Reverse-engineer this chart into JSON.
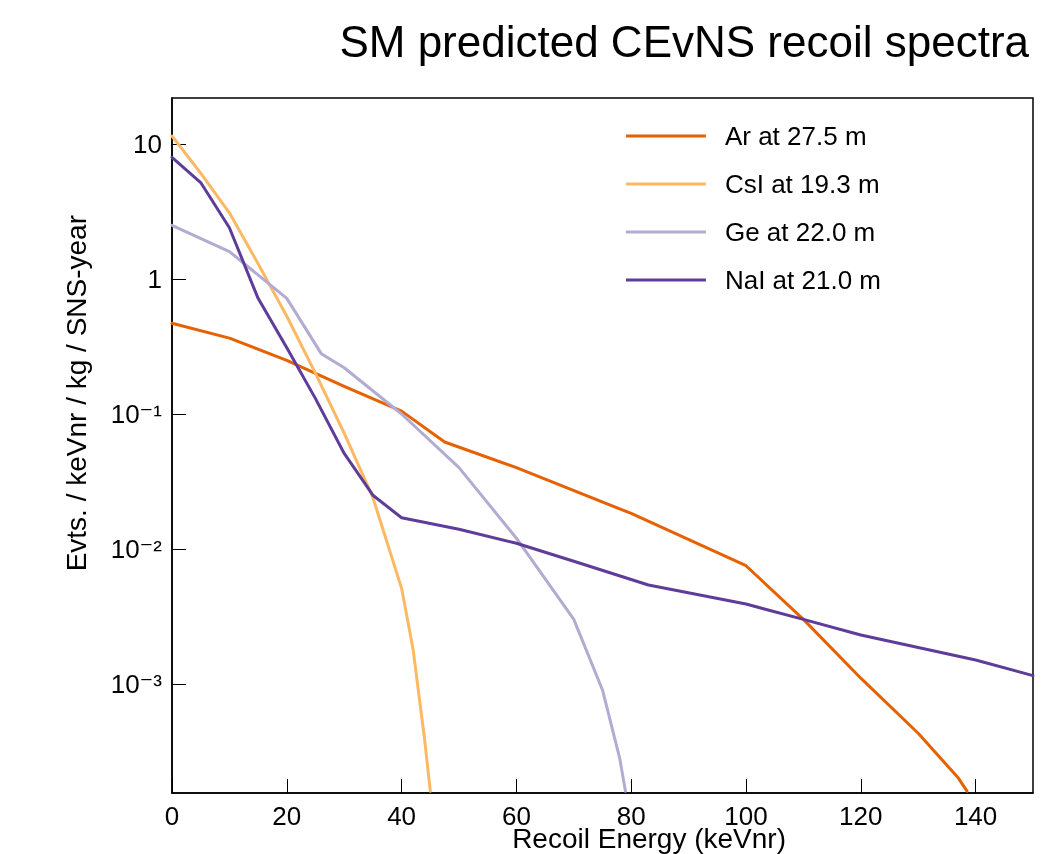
{
  "chart_data": {
    "type": "line",
    "title": "SM predicted CEvNS recoil spectra",
    "xlabel": "Recoil Energy (keVnr)",
    "ylabel": "Evts. / keVnr / kg / SNS-year",
    "xlim": [
      0,
      150
    ],
    "xticks": [
      0,
      20,
      40,
      60,
      80,
      100,
      120,
      140
    ],
    "ylim": [
      0.000155,
      22
    ],
    "yticks": [
      {
        "value": 0.001,
        "label": "10⁻³"
      },
      {
        "value": 0.01,
        "label": "10⁻²"
      },
      {
        "value": 0.1,
        "label": "10⁻¹"
      },
      1,
      10
    ],
    "log": "y",
    "grid": false,
    "legend": "top right",
    "marker": "none",
    "line_style": "solid",
    "series": [
      {
        "name": "Ar at 27.5 m",
        "color": "#e66101",
        "x": [
          0,
          10,
          20,
          30,
          40,
          47.5,
          60,
          80,
          100,
          110,
          120,
          130,
          137,
          138.5
        ],
        "values": [
          0.47,
          0.365,
          0.25,
          0.16,
          0.105,
          0.062,
          0.04,
          0.0183,
          0.0075,
          0.003,
          0.0011,
          0.00043,
          0.0002,
          0.00016
        ]
      },
      {
        "name": "CsI at 19.3 m",
        "color": "#fdb863",
        "x": [
          0,
          5,
          10,
          15,
          20,
          25,
          30,
          35,
          40,
          42,
          44,
          45
        ],
        "values": [
          11.5,
          6.1,
          3.1,
          1.3,
          0.53,
          0.2,
          0.072,
          0.024,
          0.0051,
          0.0018,
          0.00039,
          0.00016
        ]
      },
      {
        "name": "Ge at 22.0 m",
        "color": "#b2abd2",
        "x": [
          0,
          10,
          20,
          26,
          30,
          40,
          50,
          60,
          70,
          75,
          78,
          79
        ],
        "values": [
          2.5,
          1.6,
          0.72,
          0.28,
          0.22,
          0.1,
          0.04,
          0.012,
          0.003,
          0.0009,
          0.00028,
          0.00016
        ]
      },
      {
        "name": "NaI at 21.0 m",
        "color": "#5e3c99",
        "x": [
          0,
          5,
          10,
          15,
          20,
          25,
          30,
          35,
          40,
          50,
          60,
          70,
          83,
          100,
          110,
          120,
          140,
          150
        ],
        "values": [
          8,
          5.2,
          2.4,
          0.72,
          0.31,
          0.13,
          0.051,
          0.025,
          0.017,
          0.014,
          0.011,
          0.0081,
          0.0054,
          0.0039,
          0.003,
          0.0023,
          0.0015,
          0.00115
        ]
      }
    ]
  }
}
